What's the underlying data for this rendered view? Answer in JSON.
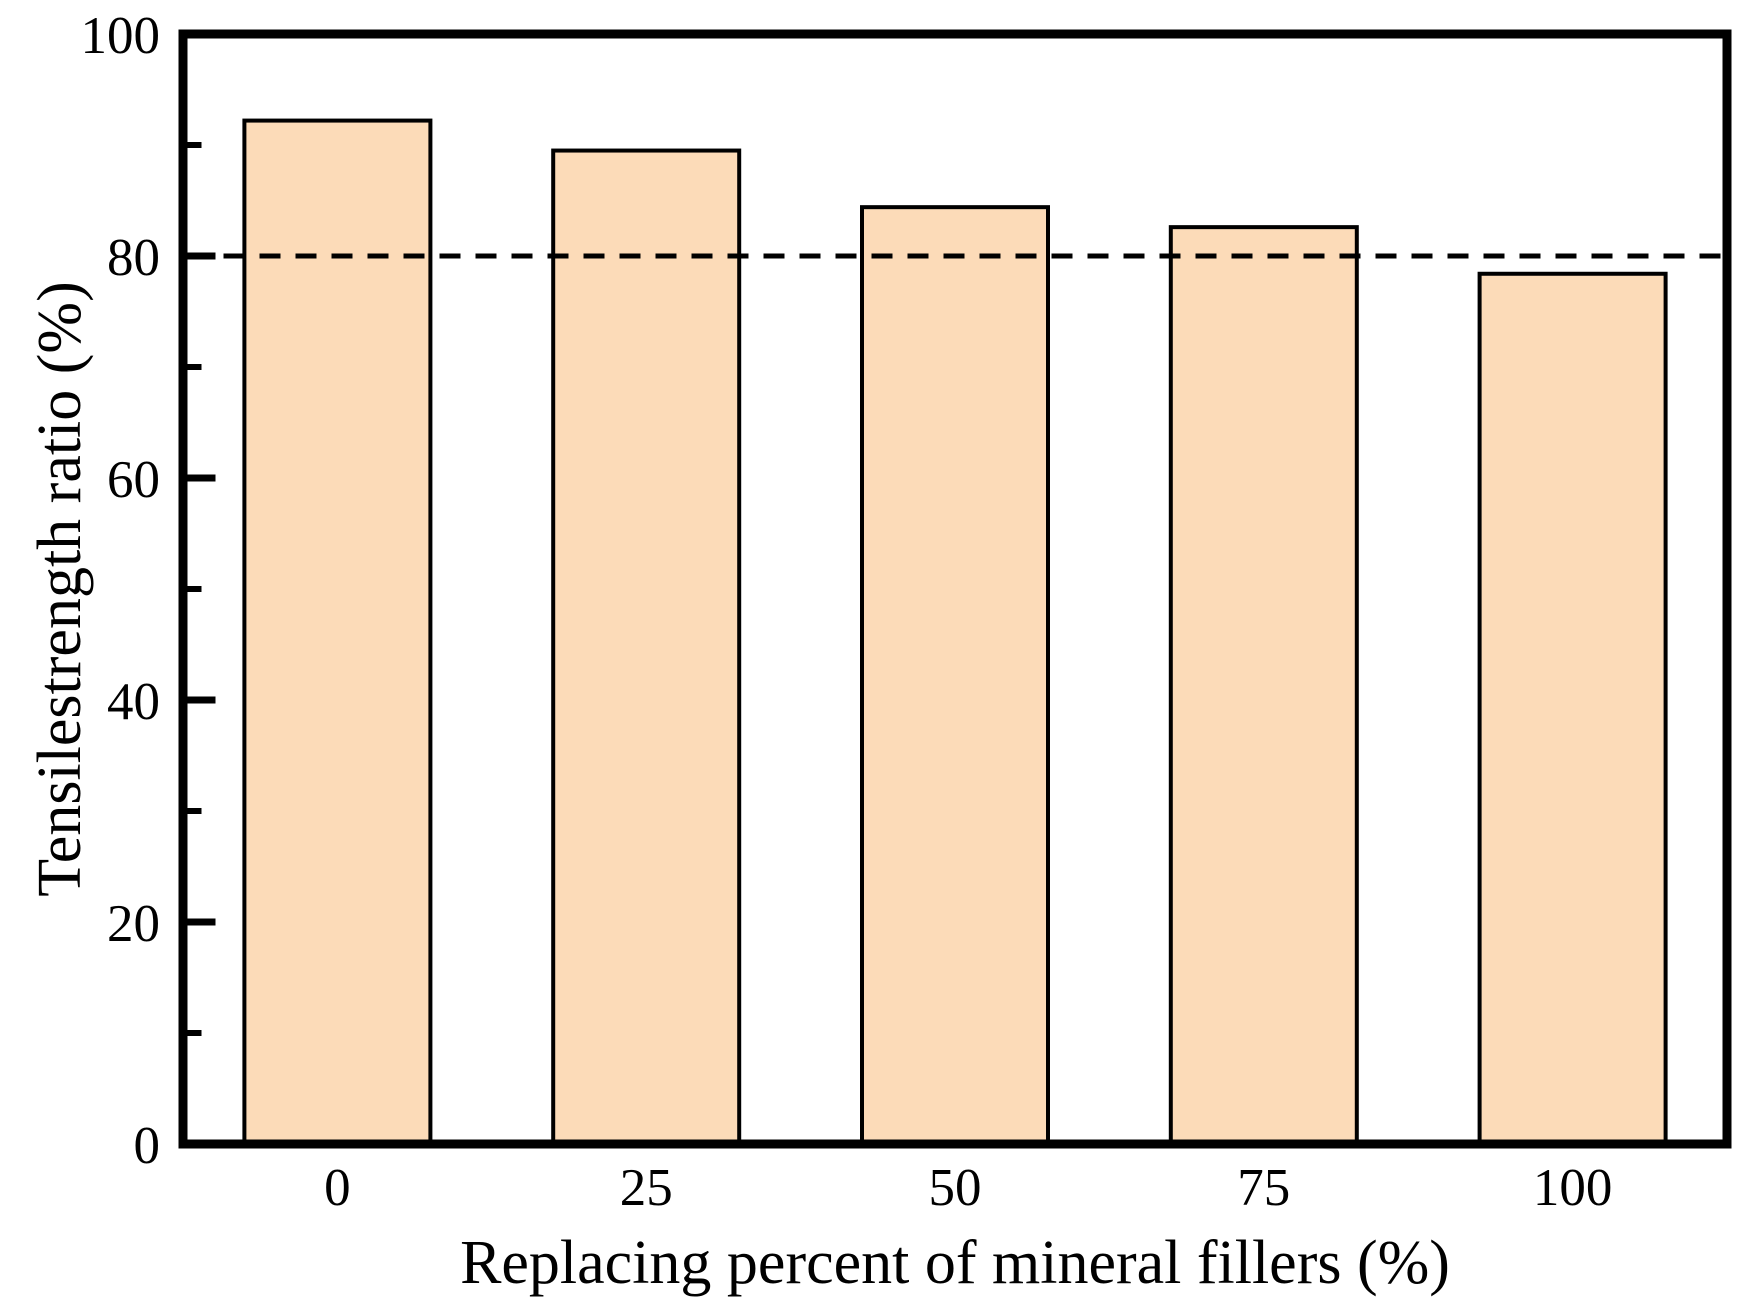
{
  "figure": {
    "background": "#ffffff",
    "text_color": "#000000"
  },
  "chart_data": {
    "type": "bar",
    "categories": [
      "0",
      "25",
      "50",
      "75",
      "100"
    ],
    "values": [
      92.2,
      89.5,
      84.4,
      82.6,
      78.4
    ],
    "title": "",
    "xlabel": "Replacing percent of mineral fillers (%)",
    "ylabel": "Tensilestrength ratio (%)",
    "ylim": [
      0,
      100
    ],
    "yticks_major": [
      0,
      20,
      40,
      60,
      80,
      100
    ],
    "yticks_minor": [
      10,
      30,
      50,
      70,
      90
    ],
    "reference_line": {
      "y": 80,
      "style": "dashed",
      "color": "#000000"
    },
    "bar_fill": "#FCDBB8",
    "bar_edge": "#000000",
    "axis_color": "#000000",
    "grid": false,
    "legend": null
  }
}
